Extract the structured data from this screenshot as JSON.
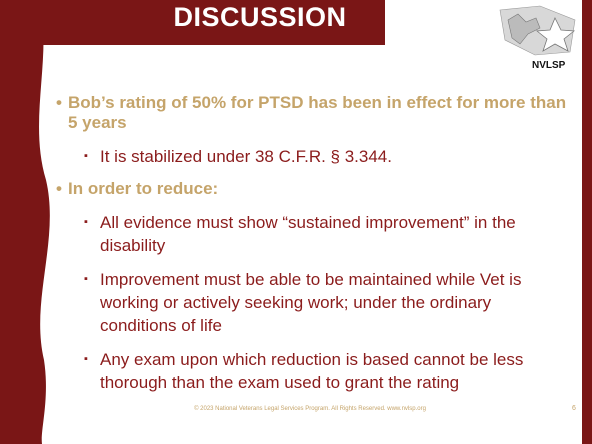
{
  "title": "DISCUSSION",
  "logo": "NVLSP",
  "bullets": [
    {
      "text": "Bob’s rating of 50% for PTSD has been in effect for more than 5 years",
      "items": [
        "It is stabilized under 38 C.F.R. § 3.344."
      ]
    },
    {
      "text": "In order to reduce:",
      "items": [
        "All evidence must show “sustained improvement” in the disability",
        "Improvement must be able to be maintained while Vet is working or actively seeking work; under the ordinary conditions of life",
        "Any exam upon which reduction is based cannot be less thorough than the exam used to grant the rating"
      ]
    }
  ],
  "footer": "© 2023 National Veterans Legal Services Program. All Rights Reserved.  www.nvlsp.org",
  "page_number": "6"
}
